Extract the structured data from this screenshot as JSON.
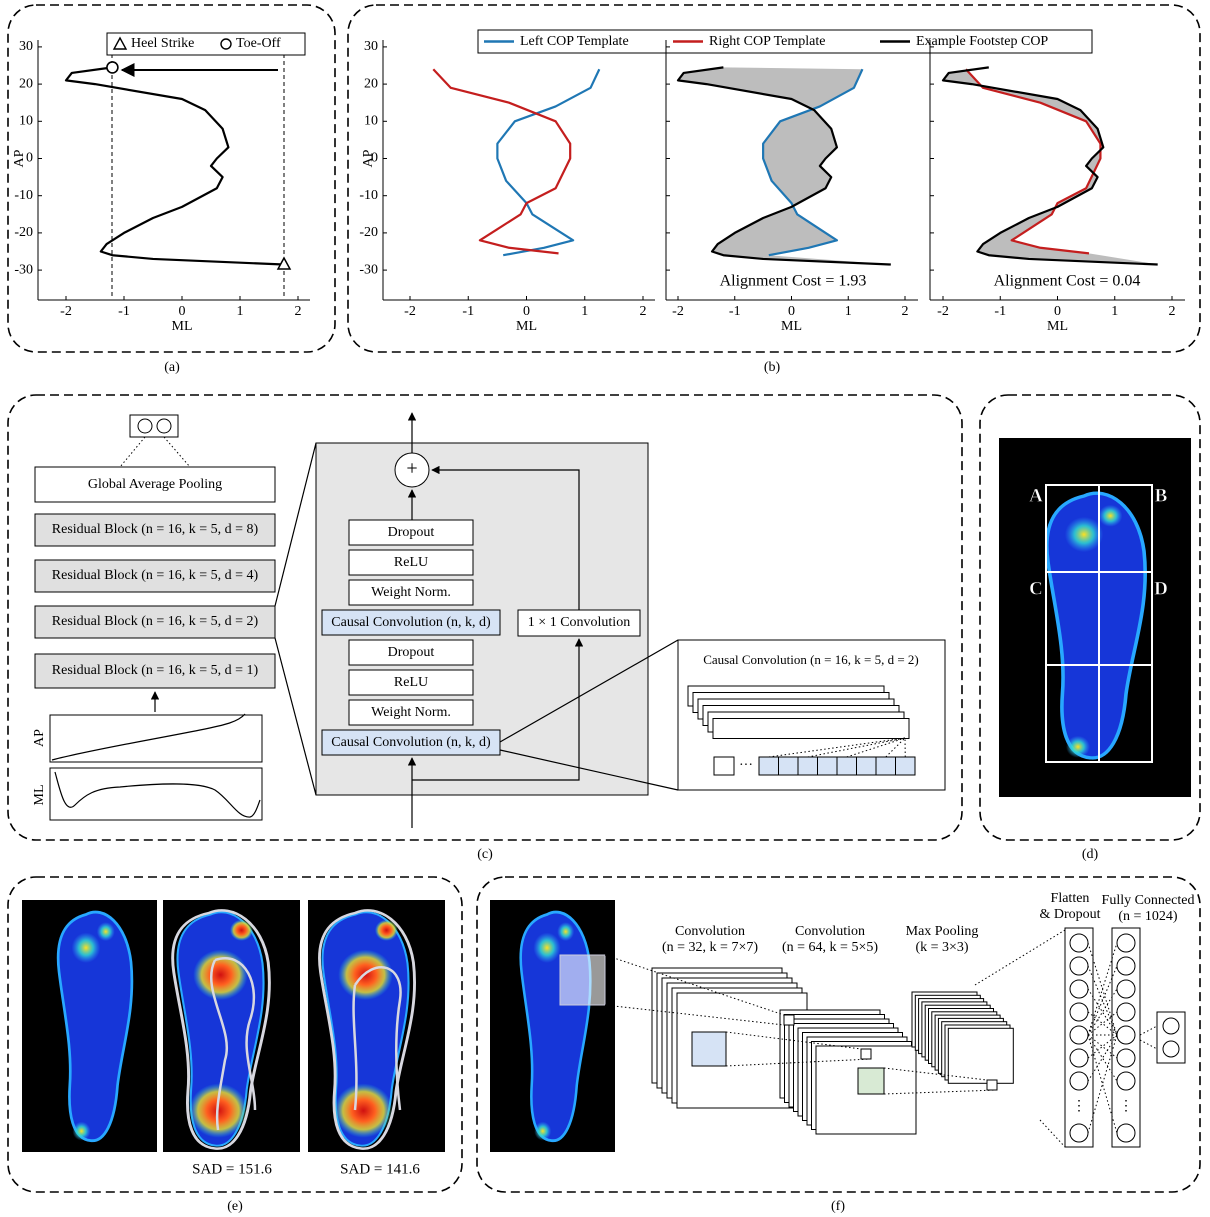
{
  "panel_a": {
    "caption": "(a)",
    "legend": [
      "Heel Strike",
      "Toe-Off"
    ],
    "xlabel": "ML",
    "ylabel": "AP",
    "xticks": [
      -2,
      -1,
      0,
      1,
      2
    ],
    "yticks": [
      -30,
      -20,
      -10,
      0,
      10,
      20,
      30
    ]
  },
  "panel_b": {
    "caption": "(b)",
    "legend": [
      "Left COP Template",
      "Right COP Template",
      "Example Footstep COP"
    ],
    "xlabel": "ML",
    "ylabel": "AP",
    "xticks": [
      -2,
      -1,
      0,
      1,
      2
    ],
    "yticks": [
      -30,
      -20,
      -10,
      0,
      10,
      20,
      30
    ],
    "annotations": [
      "Alignment Cost = 1.93",
      "Alignment Cost = 0.04"
    ]
  },
  "panel_c": {
    "caption": "(c)",
    "stack": [
      "Global Average Pooling",
      "Residual Block (n = 16, k = 5, d = 8)",
      "Residual Block (n = 16, k = 5, d = 4)",
      "Residual Block (n = 16, k = 5, d = 2)",
      "Residual Block (n = 16, k = 5, d = 1)"
    ],
    "block": [
      "Dropout",
      "ReLU",
      "Weight Norm.",
      "Causal Convolution (n, k, d)",
      "Dropout",
      "ReLU",
      "Weight Norm.",
      "Causal Convolution (n, k, d)"
    ],
    "skip": "1 × 1 Convolution",
    "plus": "+",
    "detail": "Causal Convolution (n = 16, k = 5, d = 2)",
    "ellipsis": "···",
    "inputs": [
      "AP",
      "ML"
    ]
  },
  "panel_d": {
    "caption": "(d)",
    "regions": [
      "A",
      "B",
      "C",
      "D"
    ]
  },
  "panel_e": {
    "caption": "(e)",
    "sad": [
      "SAD = 151.6",
      "SAD = 141.6"
    ]
  },
  "panel_f": {
    "caption": "(f)",
    "layers": [
      {
        "title": "Convolution",
        "params": "(n = 32, k = 7×7)"
      },
      {
        "title": "Convolution",
        "params": "(n = 64, k = 5×5)"
      },
      {
        "title": "Max Pooling",
        "params": "(k = 3×3)"
      },
      {
        "title": "Flatten",
        "params": "& Dropout"
      },
      {
        "title": "Fully Connected",
        "params": "(n = 1024)"
      }
    ],
    "ellipsis": "⋮"
  }
}
